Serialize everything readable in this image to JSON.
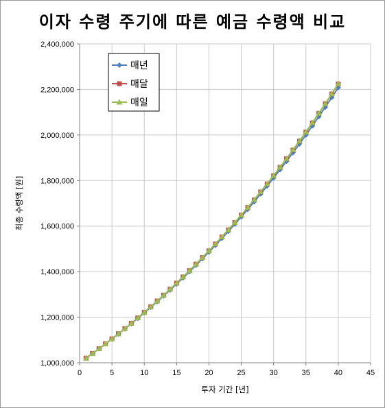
{
  "chart_data": {
    "type": "line",
    "title": "이자 수령 주기에 따른 예금 수령액 비교",
    "xlabel": "투자 기간 [년]",
    "ylabel": "최종 수령액 [원]",
    "xlim": [
      0,
      45
    ],
    "ylim": [
      1000000,
      2400000
    ],
    "xticks": [
      0,
      5,
      10,
      15,
      20,
      25,
      30,
      35,
      40,
      45
    ],
    "yticks": [
      1000000,
      1200000,
      1400000,
      1600000,
      1800000,
      2000000,
      2200000,
      2400000
    ],
    "ytick_labels": [
      "1,000,000",
      "1,200,000",
      "1,400,000",
      "1,600,000",
      "1,800,000",
      "2,000,000",
      "2,200,000",
      "2,400,000"
    ],
    "grid": true,
    "legend_position": "top-left",
    "x": [
      1,
      2,
      3,
      4,
      5,
      6,
      7,
      8,
      9,
      10,
      11,
      12,
      13,
      14,
      15,
      16,
      17,
      18,
      19,
      20,
      21,
      22,
      23,
      24,
      25,
      26,
      27,
      28,
      29,
      30,
      31,
      32,
      33,
      34,
      35,
      36,
      37,
      38,
      39,
      40
    ],
    "series": [
      {
        "name": "매년",
        "color": "#4f81bd",
        "marker": "diamond",
        "values": [
          1020000,
          1040400,
          1061208,
          1082432,
          1104081,
          1126162,
          1148686,
          1171659,
          1195093,
          1218994,
          1243374,
          1268242,
          1293607,
          1319479,
          1345868,
          1372786,
          1400241,
          1428246,
          1456811,
          1485947,
          1515666,
          1545980,
          1576899,
          1608437,
          1640606,
          1673418,
          1706886,
          1741024,
          1775845,
          1811362,
          1847589,
          1884541,
          1922231,
          1960676,
          1999890,
          2039887,
          2080685,
          2122299,
          2164745,
          2208040
        ]
      },
      {
        "name": "매달",
        "color": "#c0504d",
        "marker": "square",
        "values": [
          1020184,
          1040776,
          1061783,
          1083215,
          1105079,
          1127384,
          1150139,
          1173354,
          1197037,
          1221199,
          1245848,
          1270994,
          1296648,
          1322820,
          1349520,
          1376759,
          1404547,
          1432897,
          1461819,
          1491326,
          1521427,
          1552137,
          1583466,
          1615427,
          1648032,
          1681297,
          1715232,
          1749853,
          1785172,
          1821205,
          1857965,
          1895467,
          1933726,
          1972757,
          2012575,
          2053197,
          2094638,
          2136918,
          2180051,
          2224054
        ]
      },
      {
        "name": "매일",
        "color": "#9bbb59",
        "marker": "triangle",
        "values": [
          1020200,
          1040808,
          1061832,
          1083281,
          1105164,
          1127488,
          1150264,
          1173499,
          1197204,
          1221387,
          1246060,
          1271230,
          1296909,
          1323107,
          1349834,
          1377100,
          1404918,
          1433297,
          1462249,
          1491786,
          1521921,
          1552664,
          1584028,
          1616026,
          1648669,
          1681972,
          1715949,
          1750611,
          1785974,
          1822052,
          1858858,
          1896408,
          1934716,
          1973798,
          2013670,
          2054347,
          2095844,
          2138181,
          2181374,
          2225438
        ]
      }
    ]
  }
}
